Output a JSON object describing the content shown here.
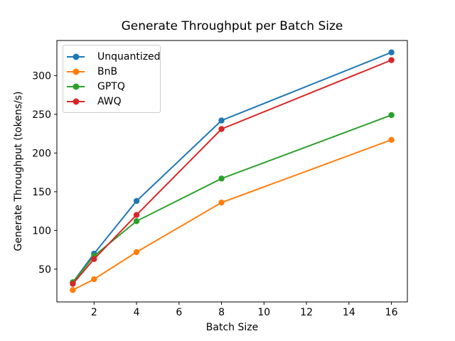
{
  "figure": {
    "background": "#ffffff",
    "axis_color": "#000000",
    "text_color": "#000000"
  },
  "chart_data": {
    "type": "line",
    "title": "Generate Throughput per Batch Size",
    "xlabel": "Batch Size",
    "ylabel": "Generate Throughput (tokens/s)",
    "x": [
      1,
      2,
      4,
      8,
      16
    ],
    "series": [
      {
        "name": "Unquantized",
        "color": "#1f77b4",
        "values": [
          33,
          70,
          138,
          242,
          330
        ]
      },
      {
        "name": "BnB",
        "color": "#ff7f0e",
        "values": [
          23,
          37,
          72,
          136,
          217
        ]
      },
      {
        "name": "GPTQ",
        "color": "#2ca02c",
        "values": [
          33,
          67,
          112,
          167,
          249
        ]
      },
      {
        "name": "AWQ",
        "color": "#d62728",
        "values": [
          31,
          63,
          120,
          231,
          320
        ]
      }
    ],
    "xticks": [
      2,
      4,
      6,
      8,
      10,
      12,
      14,
      16
    ],
    "yticks": [
      50,
      100,
      150,
      200,
      250,
      300
    ],
    "xlim": [
      0.25,
      16.75
    ],
    "ylim": [
      7.65,
      345.35
    ],
    "grid": false,
    "marker": "circle",
    "legend": {
      "position": "upper left",
      "entries": [
        "Unquantized",
        "BnB",
        "GPTQ",
        "AWQ"
      ]
    }
  }
}
